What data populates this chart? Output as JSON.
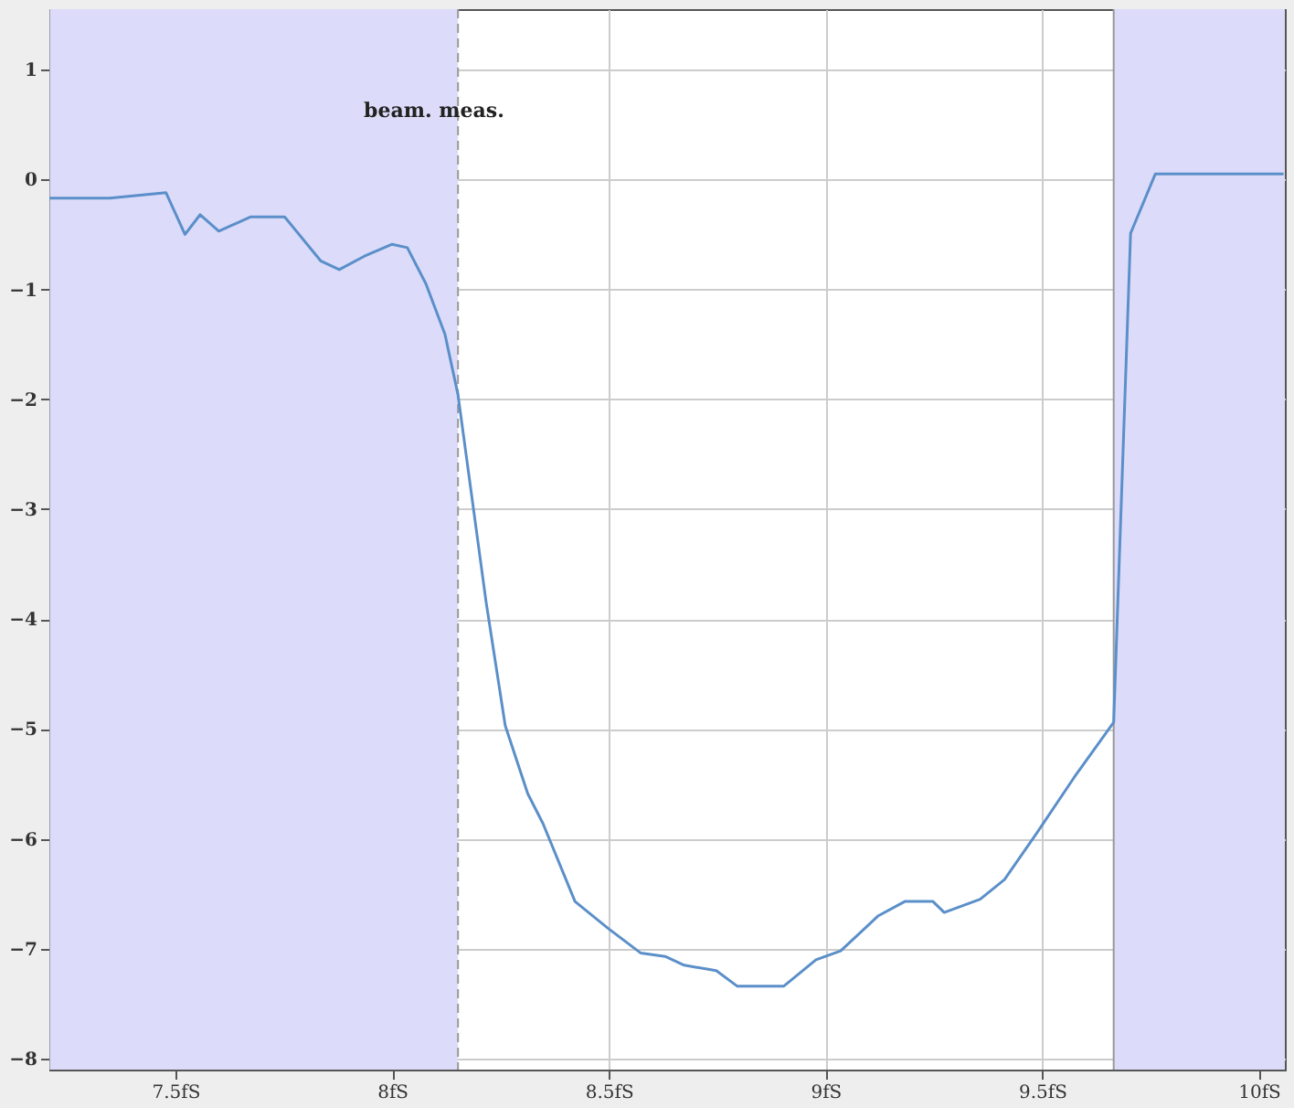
{
  "chart_data": {
    "type": "line",
    "x": [
      7.209,
      7.348,
      7.478,
      7.522,
      7.557,
      7.6,
      7.674,
      7.752,
      7.835,
      7.878,
      7.935,
      8.0,
      8.035,
      8.078,
      8.122,
      8.152,
      8.217,
      8.261,
      8.313,
      8.348,
      8.422,
      8.5,
      8.574,
      8.63,
      8.674,
      8.748,
      8.796,
      8.904,
      8.978,
      9.035,
      9.122,
      9.183,
      9.248,
      9.274,
      9.357,
      9.413,
      9.487,
      9.574,
      9.665,
      9.704,
      9.761,
      10.057
    ],
    "series": [
      {
        "color": "#5b8fc9",
        "values": [
          -0.17,
          -0.17,
          -0.12,
          -0.5,
          -0.32,
          -0.47,
          -0.34,
          -0.34,
          -0.74,
          -0.82,
          -0.7,
          -0.59,
          -0.62,
          -0.95,
          -1.41,
          -1.96,
          -3.85,
          -4.97,
          -5.59,
          -5.86,
          -6.57,
          -6.82,
          -7.04,
          -7.07,
          -7.15,
          -7.2,
          -7.34,
          -7.34,
          -7.1,
          -7.02,
          -6.7,
          -6.57,
          -6.57,
          -6.67,
          -6.55,
          -6.37,
          -5.95,
          -5.44,
          -4.94,
          -0.49,
          0.05,
          0.05
        ]
      }
    ],
    "xlim": [
      7.209,
      10.06
    ],
    "ylim": [
      -8.1,
      1.55
    ],
    "xticks": [
      {
        "value": 7.5,
        "label": "7.5fS"
      },
      {
        "value": 8,
        "label": "8fS"
      },
      {
        "value": 8.5,
        "label": "8.5fS"
      },
      {
        "value": 9,
        "label": "9fS"
      },
      {
        "value": 9.5,
        "label": "9.5fS"
      },
      {
        "value": 10,
        "label": "10fS"
      }
    ],
    "yticks": [
      -8,
      -7,
      -6,
      -5,
      -4,
      -3,
      -2,
      -1,
      0,
      1
    ],
    "bands": [
      {
        "axis": "x",
        "from": 7.21,
        "to": 8.152,
        "color": "#dcdcfa"
      },
      {
        "axis": "x",
        "from": 9.665,
        "to": 10.06,
        "color": "#dcdcfa"
      }
    ],
    "ref_lines": [
      {
        "axis": "x",
        "value": 8.152,
        "color": "#999999",
        "line_style": "dashed"
      },
      {
        "axis": "x",
        "value": 9.665,
        "color": "#999999",
        "line_style": "solid"
      }
    ],
    "annotations": [
      "beam. meas."
    ],
    "grid": true,
    "marker": "none",
    "line_style": "solid"
  }
}
